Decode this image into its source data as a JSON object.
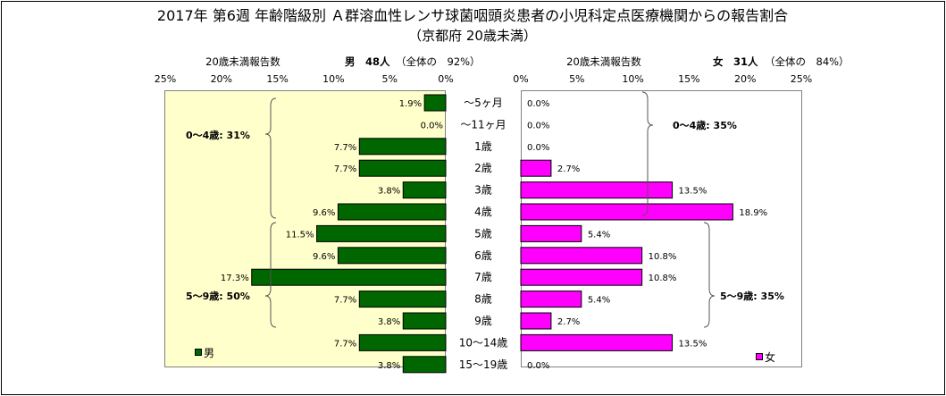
{
  "chart_data": {
    "type": "bar",
    "title": "2017年 第6週 年齢階級別 Ａ群溶血性レンサ球菌咽頭炎患者の小児科定点医療機関からの報告割合",
    "subtitle": "（京都府 20歳未満）",
    "categories": [
      "～5ヶ月",
      "～11ヶ月",
      "1歳",
      "2歳",
      "3歳",
      "4歳",
      "5歳",
      "6歳",
      "7歳",
      "8歳",
      "9歳",
      "10～14歳",
      "15～19歳"
    ],
    "xlim": [
      0,
      25
    ],
    "ticks": [
      "25%",
      "20%",
      "15%",
      "10%",
      "5%",
      "0%"
    ],
    "ticks_right": [
      "0%",
      "5%",
      "10%",
      "15%",
      "20%",
      "25%"
    ],
    "series": [
      {
        "name": "男",
        "color": "#006600",
        "header_label": "20歳未満報告数",
        "header_count": "男　48人",
        "header_share": "（全体の　92%）",
        "values": [
          1.9,
          0.0,
          7.7,
          7.7,
          3.8,
          9.6,
          11.5,
          9.6,
          17.3,
          7.7,
          3.8,
          7.7,
          3.8
        ],
        "labels": [
          "1.9%",
          "0.0%",
          "7.7%",
          "7.7%",
          "3.8%",
          "9.6%",
          "11.5%",
          "9.6%",
          "17.3%",
          "7.7%",
          "3.8%",
          "7.7%",
          "3.8%"
        ],
        "groups": [
          "0～4歳: 31%",
          "5～9歳: 50%"
        ]
      },
      {
        "name": "女",
        "color": "#ff00ff",
        "header_label": "20歳未満報告数",
        "header_count": "女　31人",
        "header_share": "（全体の　84%）",
        "values": [
          0.0,
          0.0,
          0.0,
          2.7,
          13.5,
          18.9,
          5.4,
          10.8,
          10.8,
          5.4,
          2.7,
          13.5,
          0.0
        ],
        "labels": [
          "0.0%",
          "0.0%",
          "0.0%",
          "2.7%",
          "13.5%",
          "18.9%",
          "5.4%",
          "10.8%",
          "10.8%",
          "5.4%",
          "2.7%",
          "13.5%",
          "0.0%"
        ],
        "groups": [
          "0～4歳: 35%",
          "5～9歳: 35%"
        ]
      }
    ]
  }
}
